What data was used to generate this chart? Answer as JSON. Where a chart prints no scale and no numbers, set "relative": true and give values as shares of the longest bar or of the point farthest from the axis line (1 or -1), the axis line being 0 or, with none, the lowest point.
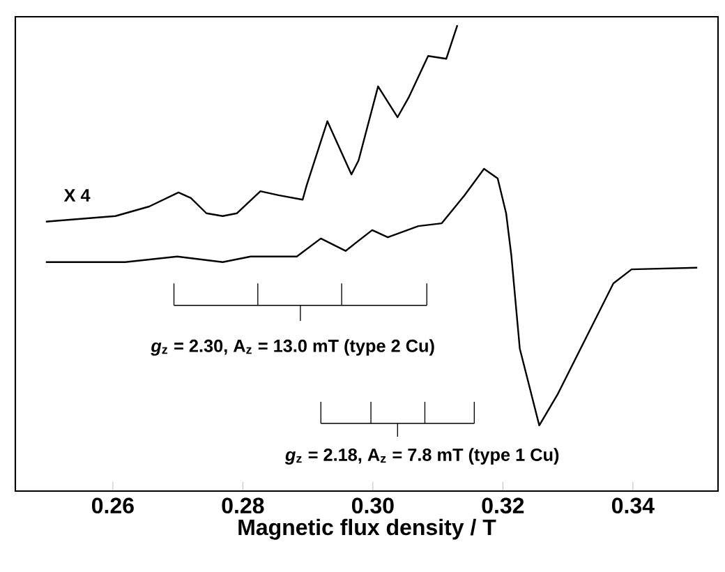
{
  "chart_data": {
    "type": "line",
    "relative": true,
    "xlabel": "Magnetic flux density / T",
    "xlim": [
      0.245,
      0.3531
    ],
    "xticks": [
      0.26,
      0.28,
      {
        "value": 0.3,
        "label": "0.30"
      },
      0.32,
      0.34
    ],
    "x": [
      0.2497,
      0.2619,
      0.2699,
      0.2769,
      0.2812,
      0.2883,
      0.292,
      0.2958,
      0.2999,
      0.3023,
      0.307,
      0.3106,
      0.3141,
      0.3171,
      0.3192,
      0.3205,
      0.3213,
      0.3226,
      0.3256,
      0.3284,
      0.3327,
      0.337,
      0.3398,
      0.3499
    ],
    "series": [
      {
        "color": "#000000",
        "values": [
          0.408,
          0.408,
          0.422,
          0.408,
          0.422,
          0.422,
          0.467,
          0.436,
          0.488,
          0.47,
          0.498,
          0.505,
          0.575,
          0.641,
          0.617,
          0.53,
          0.425,
          0.192,
          0,
          0.077,
          0.216,
          0.355,
          0.39,
          0.394
        ]
      },
      {
        "color": "#000000",
        "x": [
          0.2497,
          0.2604,
          0.2656,
          0.2701,
          0.272,
          0.2744,
          0.2769,
          0.2791,
          0.2827,
          0.2855,
          0.2892,
          0.2898,
          0.293,
          0.2967,
          0.2978,
          0.3008,
          0.3038,
          0.3055,
          0.3085,
          0.3113,
          0.313
        ],
        "values": [
          0.509,
          0.523,
          0.547,
          0.582,
          0.568,
          0.53,
          0.523,
          0.53,
          0.585,
          0.575,
          0.564,
          0.599,
          0.76,
          0.627,
          0.662,
          0.847,
          0.77,
          0.819,
          0.923,
          0.916,
          1.0
        ]
      }
    ],
    "annotations": [
      "X 4",
      "*g*$_{z}$ = 2.30, A$_{z}$ = 13.0 mT (type 2 Cu)",
      "*g*$_{z}$ = 2.18, A$_{z}$ = 7.8 mT (type 1 Cu)"
    ],
    "marker": "none",
    "line_style": "solid"
  }
}
